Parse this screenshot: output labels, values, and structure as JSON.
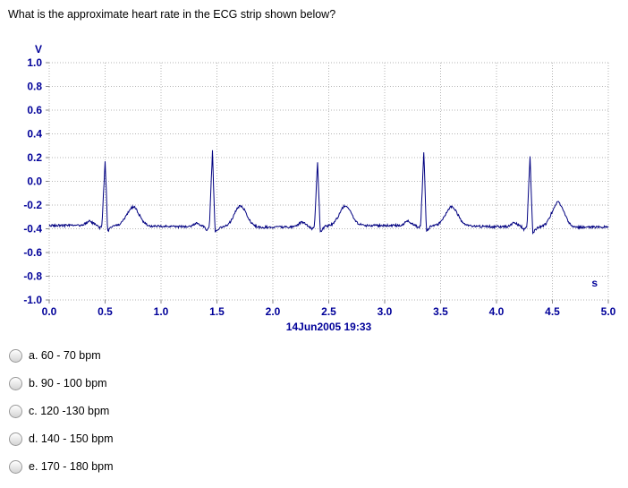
{
  "question": {
    "text": "What is the approximate heart rate in the ECG strip shown below?"
  },
  "chart_data": {
    "type": "line",
    "title": "",
    "ylabel": "V",
    "xlabel": "s",
    "caption": "14Jun2005 19:33",
    "xlim": [
      0.0,
      5.0
    ],
    "ylim": [
      -1.0,
      1.0
    ],
    "x_ticks": [
      "0.0",
      "0.5",
      "1.0",
      "1.5",
      "2.0",
      "2.5",
      "3.0",
      "3.5",
      "4.0",
      "4.5",
      "5.0"
    ],
    "y_ticks": [
      "1.0",
      "0.8",
      "0.6",
      "0.4",
      "0.2",
      "0.0",
      "-0.2",
      "-0.4",
      "-0.6",
      "-0.8",
      "-1.0"
    ],
    "grid": "dotted",
    "grid_color": "#b5b5b5",
    "axis_label_color": "#000099",
    "trace_color": "#000080",
    "baseline_v": -0.38,
    "noise_v": 0.02,
    "beats": [
      {
        "t": 0.5,
        "r_peak_v": 0.17,
        "t_wave_v": -0.22
      },
      {
        "t": 1.46,
        "r_peak_v": 0.26,
        "t_wave_v": -0.2
      },
      {
        "t": 2.4,
        "r_peak_v": 0.17,
        "t_wave_v": -0.21
      },
      {
        "t": 3.35,
        "r_peak_v": 0.24,
        "t_wave_v": -0.22
      },
      {
        "t": 4.3,
        "r_peak_v": 0.22,
        "t_wave_v": -0.17
      }
    ]
  },
  "options": [
    {
      "label": "a. 60 - 70 bpm"
    },
    {
      "label": "b. 90 - 100 bpm"
    },
    {
      "label": "c. 120 -130 bpm"
    },
    {
      "label": "d. 140 - 150 bpm"
    },
    {
      "label": "e. 170 - 180 bpm"
    }
  ]
}
